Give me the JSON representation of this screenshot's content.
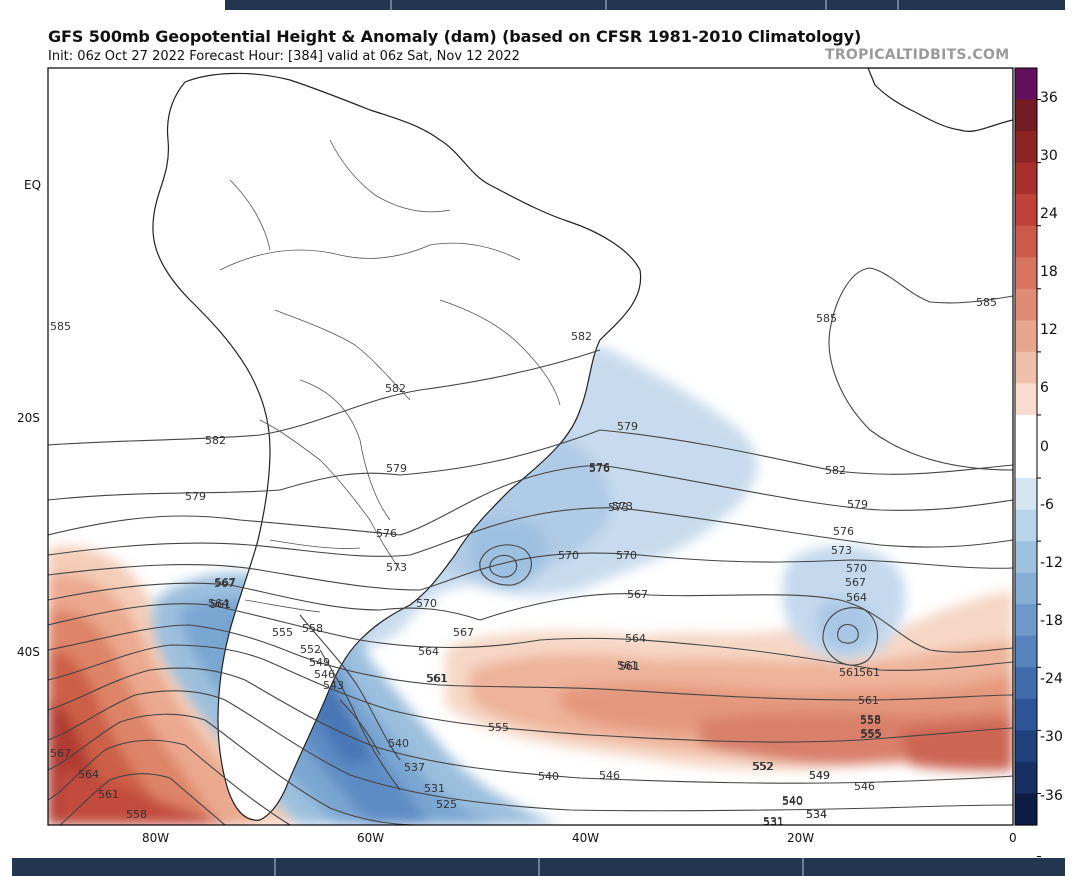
{
  "header": {
    "title": "GFS 500mb Geopotential Height & Anomaly (dam) (based on CFSR 1981-2010 Climatology)",
    "subtitle": "Init: 06z Oct 27 2022   Forecast Hour: [384]   valid at 06z Sat, Nov 12 2022",
    "brand": "TROPICALTIDBITS.COM"
  },
  "axes": {
    "latitude_labels": [
      "EQ",
      "20S",
      "40S"
    ],
    "longitude_labels": [
      "80W",
      "60W",
      "40W",
      "20W",
      "0"
    ]
  },
  "colorbar": {
    "labels": [
      "36",
      "30",
      "24",
      "18",
      "12",
      "6",
      "0",
      "-6",
      "-12",
      "-18",
      "-24",
      "-30",
      "-36"
    ],
    "colors": [
      "#63105f",
      "#731d22",
      "#8e2324",
      "#a8302c",
      "#bd433a",
      "#cc5b4b",
      "#d7735e",
      "#e08c74",
      "#e9a58e",
      "#f1c0ab",
      "#f7dccf",
      "#ffffff",
      "#ffffff",
      "#d6e5f2",
      "#b8d3ea",
      "#9ec1e0",
      "#87afd6",
      "#6d98c9",
      "#5682bd",
      "#3f6bad",
      "#2d5497",
      "#1f407d",
      "#172f63",
      "#0d1c45"
    ]
  },
  "contour_labels": [
    "585",
    "582",
    "582",
    "582",
    "579",
    "579",
    "579",
    "576",
    "576",
    "573",
    "573",
    "570",
    "570",
    "567",
    "567",
    "567",
    "564",
    "564",
    "561",
    "561",
    "561",
    "558",
    "558",
    "555",
    "555",
    "552",
    "552",
    "549",
    "549",
    "546",
    "546",
    "543",
    "540",
    "540",
    "537",
    "534",
    "531",
    "531",
    "525",
    "567",
    "564",
    "561",
    "558",
    "585",
    "585",
    "582",
    "579",
    "576",
    "573",
    "570",
    "567",
    "564",
    "561",
    "561",
    "558",
    "555",
    "552",
    "549",
    "546",
    "540",
    "534",
    "531",
    "567",
    "564",
    "561",
    "570",
    "573",
    "576",
    "561",
    "561",
    "555",
    "540"
  ]
}
